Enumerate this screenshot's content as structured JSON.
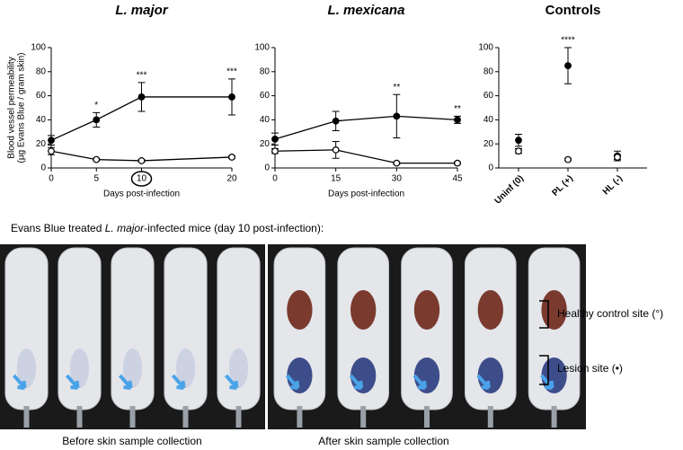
{
  "chart_data": [
    {
      "type": "line",
      "title": "L. major",
      "title_italic": true,
      "x": [
        0,
        5,
        10,
        20
      ],
      "xlim": [
        0,
        20
      ],
      "xticks": [
        0,
        5,
        10,
        20
      ],
      "circled_xtick": 10,
      "ylim": [
        0,
        100
      ],
      "yticks": [
        0,
        20,
        40,
        60,
        80,
        100
      ],
      "xlabel": "Days post-infection",
      "ylabel": [
        "Blood vessel permeability",
        "(µg Evans Blue / gram skin)"
      ],
      "series": [
        {
          "name": "Lesion site (•)",
          "color": "#000",
          "marker_fill": "#000",
          "values": [
            23,
            40,
            59,
            59
          ],
          "errors": [
            4,
            6,
            12,
            15
          ]
        },
        {
          "name": "Healthy control site (°)",
          "color": "#000",
          "marker_fill": "#fff",
          "values": [
            14,
            7,
            6,
            9
          ],
          "errors": [
            3,
            1,
            1,
            1
          ]
        }
      ],
      "annotations": [
        null,
        "*",
        "***",
        "***"
      ]
    },
    {
      "type": "line",
      "title": "L. mexicana",
      "title_italic": true,
      "x": [
        0,
        15,
        30,
        45
      ],
      "xlim": [
        0,
        45
      ],
      "xticks": [
        0,
        15,
        30,
        45
      ],
      "ylim": [
        0,
        100
      ],
      "yticks": [
        0,
        20,
        40,
        60,
        80,
        100
      ],
      "xlabel": "Days post-infection",
      "series": [
        {
          "name": "Lesion site (•)",
          "color": "#000",
          "marker_fill": "#000",
          "values": [
            24,
            39,
            43,
            40
          ],
          "errors": [
            5,
            8,
            18,
            3
          ]
        },
        {
          "name": "Healthy control site (°)",
          "color": "#000",
          "marker_fill": "#fff",
          "values": [
            14,
            15,
            4,
            4
          ],
          "errors": [
            2,
            7,
            1,
            1
          ]
        }
      ],
      "annotations": [
        null,
        null,
        "**",
        "**"
      ]
    },
    {
      "type": "dot",
      "title": "Controls",
      "title_italic": false,
      "categories": [
        "Uninf (0)",
        "PL (+)",
        "HL (-)"
      ],
      "ylim": [
        0,
        100
      ],
      "yticks": [
        0,
        20,
        40,
        60,
        80,
        100
      ],
      "series": [
        {
          "name": "Lesion site (•)",
          "color": "#000",
          "marker_fill": "#000",
          "values": [
            23,
            85,
            10
          ],
          "errors": [
            5,
            15,
            4
          ]
        },
        {
          "name": "Healthy control site (°)",
          "color": "#000",
          "marker_fill": "#fff",
          "values": [
            14,
            7,
            9
          ],
          "errors": [
            2,
            1,
            2
          ]
        }
      ],
      "annotations": [
        null,
        "****",
        null
      ]
    }
  ],
  "photo_caption": {
    "prefix": "Evans Blue treated ",
    "italic": "L. major",
    "suffix": "-infected mice (day 10 post-infection):"
  },
  "photo_labels": [
    "Before skin sample collection",
    "After skin sample collection"
  ]
}
